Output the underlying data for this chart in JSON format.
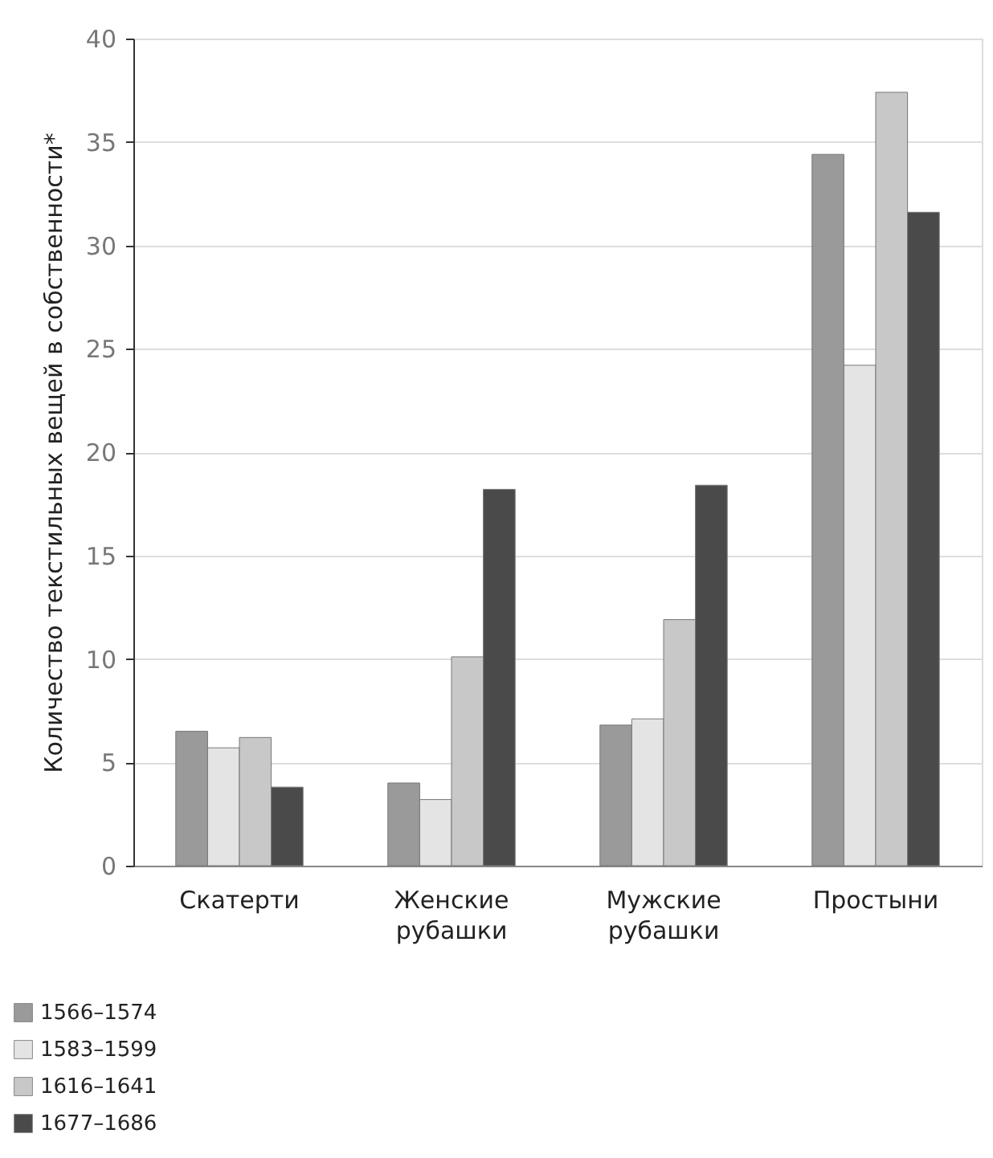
{
  "chart_data": {
    "type": "bar",
    "ylabel": "Количество текстильных вещей в собственности*",
    "categories": [
      "Скатерти",
      "Женские рубашки",
      "Мужские рубашки",
      "Простыни"
    ],
    "series": [
      {
        "name": "1566–1574",
        "color": "#9a9a9a",
        "values": [
          6.5,
          4.0,
          6.8,
          34.4
        ]
      },
      {
        "name": "1583–1599",
        "color": "#e4e4e4",
        "values": [
          5.7,
          3.2,
          7.1,
          24.2
        ]
      },
      {
        "name": "1616–1641",
        "color": "#c8c8c8",
        "values": [
          6.2,
          10.1,
          11.9,
          37.4
        ]
      },
      {
        "name": "1677–1686",
        "color": "#4a4a4a",
        "values": [
          3.8,
          18.2,
          18.4,
          31.6
        ]
      }
    ],
    "ylim": [
      0,
      40
    ],
    "yticks": [
      0,
      5,
      10,
      15,
      20,
      25,
      30,
      35,
      40
    ],
    "grid": "y",
    "legend": "bottom left"
  }
}
